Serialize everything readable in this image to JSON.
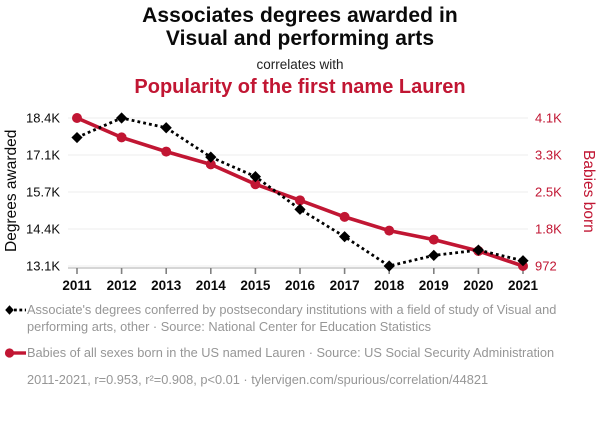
{
  "header": {
    "title_line1": "Associates degrees awarded in",
    "title_line2": "Visual and performing arts",
    "connector": "correlates with",
    "subtitle": "Popularity of the first name Lauren",
    "subtitle_color": "#c11633"
  },
  "chart_data": {
    "type": "line",
    "x": [
      2011,
      2012,
      2013,
      2014,
      2015,
      2016,
      2017,
      2018,
      2019,
      2020,
      2021
    ],
    "series": [
      {
        "name": "Associate's degrees conferred in Visual and performing arts, other",
        "axis": "left",
        "color": "#000000",
        "line_style": "dashed",
        "marker": "diamond",
        "values": [
          17700,
          18400,
          18050,
          17000,
          16300,
          15130,
          14150,
          13100,
          13480,
          13670,
          13290
        ]
      },
      {
        "name": "Babies of all sexes born in the US named Lauren",
        "axis": "right",
        "color": "#c11633",
        "line_style": "solid",
        "marker": "circle",
        "values": [
          4100,
          3690,
          3390,
          3120,
          2700,
          2360,
          2010,
          1720,
          1530,
          1290,
          972
        ]
      }
    ],
    "left_axis": {
      "label": "Degrees awarded",
      "tick_labels": [
        "18.4K",
        "17.1K",
        "15.7K",
        "14.4K",
        "13.1K"
      ],
      "max": 18400,
      "min": 13100
    },
    "right_axis": {
      "label": "Babies born",
      "tick_labels": [
        "4.1K",
        "3.3K",
        "2.5K",
        "1.8K",
        "972"
      ],
      "max": 4100,
      "min": 972
    },
    "grid": true,
    "legend_position": "below",
    "grid_color": "#ececec",
    "axis_line_color": "#c9c9c9",
    "tick_mark_color": "#808080"
  },
  "legend": {
    "series1_label": "Associate's degrees conferred by postsecondary institutions with a field of study of Visual and performing arts, other · Source: National Center for Education Statistics",
    "series2_label": "Babies of all sexes born in the US named Lauren · Source: US Social Security Administration"
  },
  "footer": {
    "stats": "2011-2021, r=0.953, r²=0.908, p<0.01 · tylervigen.com/spurious/correlation/44821"
  }
}
